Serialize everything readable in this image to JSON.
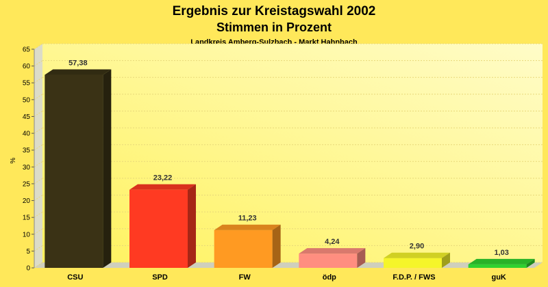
{
  "colors": {
    "background": "#ffe85a",
    "plot_gradient_start": "#fff25c",
    "plot_gradient_end": "#fffcc8"
  },
  "chart_data": {
    "type": "bar",
    "title": "Ergebnis zur Kreistagswahl 2002",
    "subtitle": "Stimmen in Prozent",
    "caption": "Landkreis Amberg-Sulzbach - Markt Hahnbach",
    "xlabel": "",
    "ylabel": "%",
    "ylim": [
      0,
      65
    ],
    "yticks": [
      0,
      5,
      10,
      15,
      20,
      25,
      30,
      35,
      40,
      45,
      50,
      55,
      60,
      65
    ],
    "grid": true,
    "categories": [
      "CSU",
      "SPD",
      "FW",
      "ödp",
      "F.D.P. / FWS",
      "guK"
    ],
    "values": [
      57.38,
      23.22,
      11.23,
      4.24,
      2.9,
      1.03
    ],
    "value_labels": [
      "57,38",
      "23,22",
      "11,23",
      "4,24",
      "2,90",
      "1,03"
    ],
    "bar_colors": [
      "#3a3215",
      "#ff3a22",
      "#ff9a22",
      "#ff8e80",
      "#f5f52a",
      "#2fd12f"
    ]
  }
}
